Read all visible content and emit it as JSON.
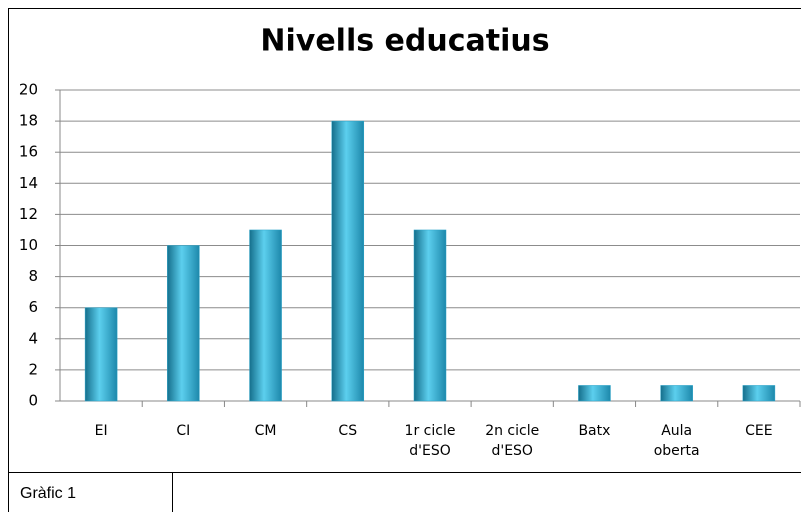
{
  "chart_data": {
    "type": "bar",
    "title": "Nivells educatius",
    "categories": [
      "EI",
      "CI",
      "CM",
      "CS",
      "1r cicle d'ESO",
      "2n cicle d'ESO",
      "Batx",
      "Aula oberta",
      "CEE"
    ],
    "values": [
      6,
      10,
      11,
      18,
      11,
      0,
      1,
      1,
      1
    ],
    "color": "#2aa3c8",
    "ylim": [
      0,
      20
    ],
    "yticks": [
      0,
      2,
      4,
      6,
      8,
      10,
      12,
      14,
      16,
      18,
      20
    ],
    "grid": true
  },
  "caption": "Gràfic 1"
}
